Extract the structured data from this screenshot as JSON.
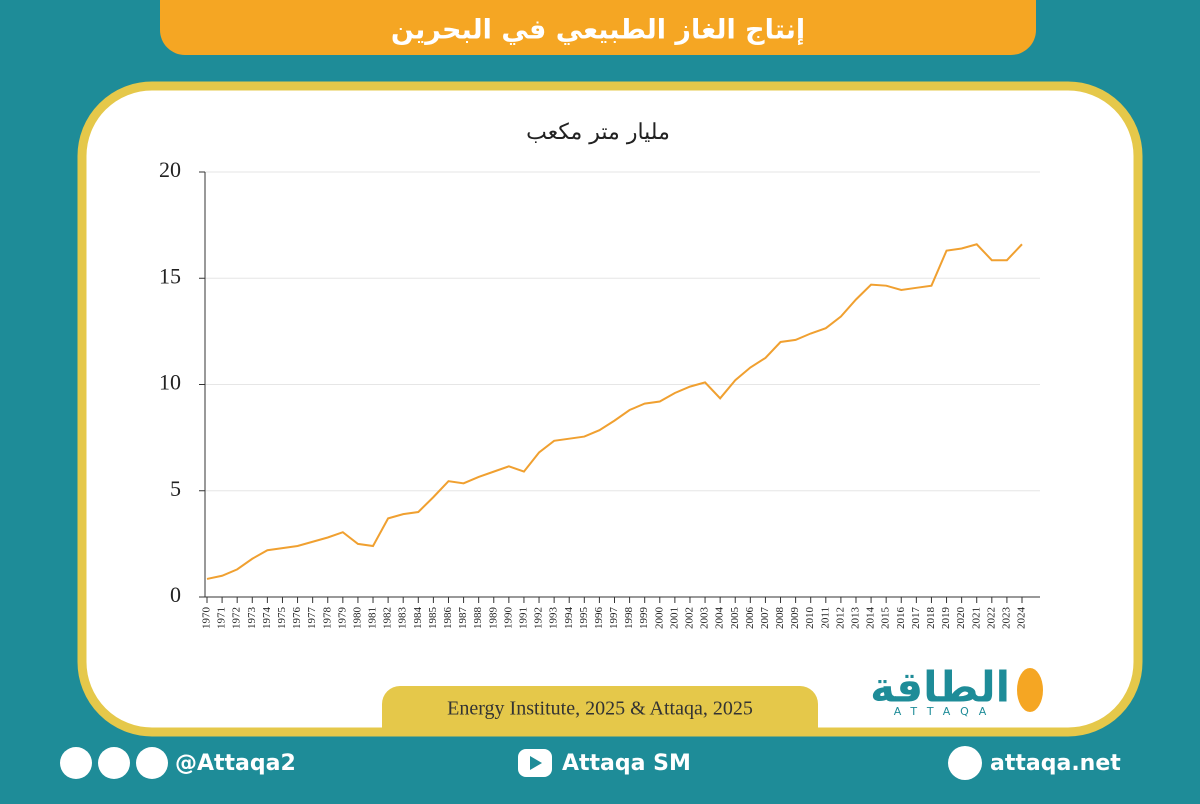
{
  "chart_data": {
    "type": "line",
    "title": "إنتاج الغاز الطبيعي في البحرين",
    "subtitle": "مليار متر مكعب",
    "categories": [
      "1970",
      "1971",
      "1972",
      "1973",
      "1974",
      "1975",
      "1976",
      "1977",
      "1978",
      "1979",
      "1980",
      "1981",
      "1982",
      "1983",
      "1984",
      "1985",
      "1986",
      "1987",
      "1988",
      "1989",
      "1990",
      "1991",
      "1992",
      "1993",
      "1994",
      "1995",
      "1996",
      "1997",
      "1998",
      "1999",
      "2000",
      "2001",
      "2002",
      "2003",
      "2004",
      "2005",
      "2006",
      "2007",
      "2008",
      "2009",
      "2010",
      "2011",
      "2012",
      "2013",
      "2014",
      "2015",
      "2016",
      "2017",
      "2018",
      "2019",
      "2020",
      "2021",
      "2022",
      "2023",
      "2024"
    ],
    "values": [
      0.85,
      1.0,
      1.3,
      1.8,
      2.2,
      2.3,
      2.4,
      2.6,
      2.8,
      3.05,
      2.5,
      2.4,
      3.7,
      3.9,
      4.0,
      4.7,
      5.45,
      5.35,
      5.65,
      5.9,
      6.15,
      5.9,
      6.8,
      7.35,
      7.45,
      7.55,
      7.85,
      8.3,
      8.8,
      9.1,
      9.2,
      9.6,
      9.9,
      10.1,
      9.35,
      10.2,
      10.8,
      11.25,
      12.0,
      12.1,
      12.4,
      12.65,
      13.2,
      14.0,
      14.7,
      14.65,
      14.45,
      14.55,
      14.65,
      16.3,
      16.4,
      16.6,
      15.85,
      15.85,
      16.6
    ],
    "color": "#f0a030",
    "ylim": [
      0,
      20
    ],
    "yticks": [
      0,
      5,
      10,
      15,
      20
    ],
    "grid": true,
    "source": "Energy Institute, 2025 & Attaqa, 2025"
  },
  "logo": {
    "name": "الطاقة",
    "latin": "ATTAQA"
  },
  "footer": {
    "handle": "@Attaqa2",
    "youtube": "Attaqa SM",
    "website": "attaqa.net"
  }
}
